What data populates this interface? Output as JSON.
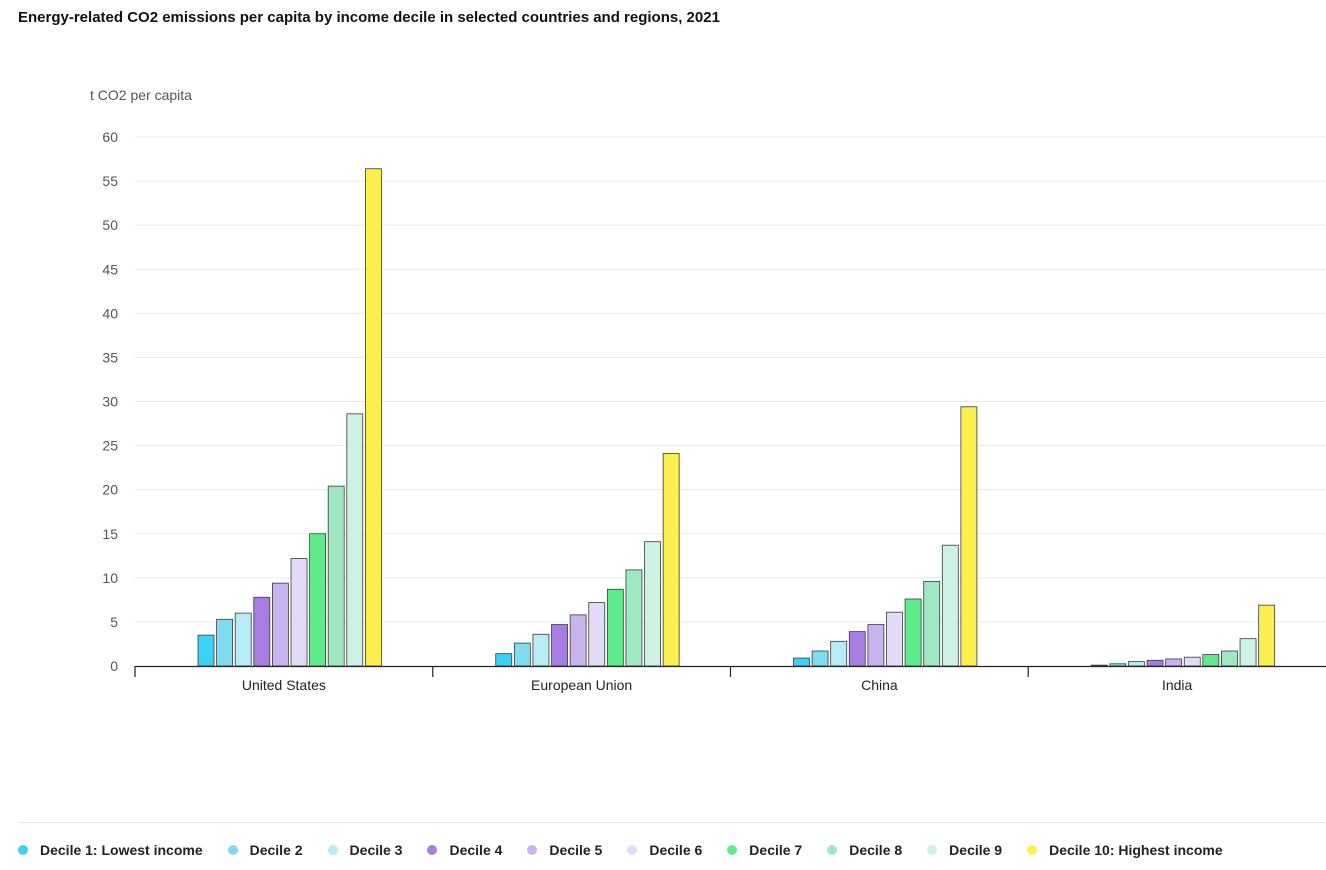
{
  "chart_data": {
    "type": "bar",
    "title": "Energy-related CO2 emissions per capita by income decile in selected countries and regions, 2021",
    "ylabel": "t CO2 per capita",
    "xlabel": "",
    "ylim": [
      0,
      60
    ],
    "yticks": [
      0,
      5,
      10,
      15,
      20,
      25,
      30,
      35,
      40,
      45,
      50,
      55,
      60
    ],
    "grid": true,
    "legend_position": "bottom",
    "categories": [
      "United States",
      "European Union",
      "China",
      "India"
    ],
    "series": [
      {
        "name": "Decile 1: Lowest income",
        "color": "#3fd0f5",
        "values": [
          3.5,
          1.4,
          0.9,
          0.1
        ]
      },
      {
        "name": "Decile 2",
        "color": "#7fdbef",
        "values": [
          5.3,
          2.6,
          1.7,
          0.25
        ]
      },
      {
        "name": "Decile 3",
        "color": "#b8ecf5",
        "values": [
          6.0,
          3.6,
          2.8,
          0.5
        ]
      },
      {
        "name": "Decile 4",
        "color": "#a67ee3",
        "values": [
          7.8,
          4.7,
          3.9,
          0.65
        ]
      },
      {
        "name": "Decile 5",
        "color": "#c9b3ee",
        "values": [
          9.4,
          5.8,
          4.7,
          0.8
        ]
      },
      {
        "name": "Decile 6",
        "color": "#e3dbf5",
        "values": [
          12.2,
          7.2,
          6.1,
          1.0
        ]
      },
      {
        "name": "Decile 7",
        "color": "#5feb8b",
        "values": [
          15.0,
          8.7,
          7.6,
          1.3
        ]
      },
      {
        "name": "Decile 8",
        "color": "#9fe8c2",
        "values": [
          20.4,
          10.9,
          9.6,
          1.7
        ]
      },
      {
        "name": "Decile 9",
        "color": "#cdf2e3",
        "values": [
          28.6,
          14.1,
          13.7,
          3.1
        ]
      },
      {
        "name": "Decile 10: Highest income",
        "color": "#fbef4f",
        "values": [
          56.4,
          24.1,
          29.4,
          6.9
        ]
      }
    ]
  }
}
